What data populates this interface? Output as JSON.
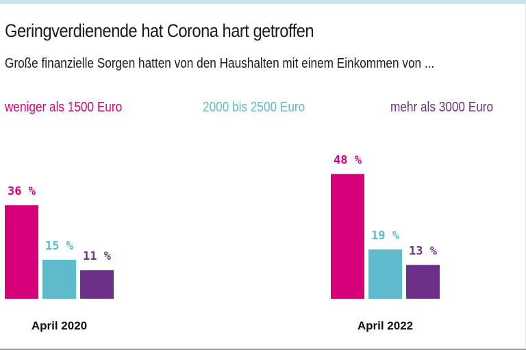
{
  "header": {
    "title": "Geringverdienende hat Corona hart getroffen",
    "subtitle": "Große finanzielle Sorgen hatten von den Haushalten mit einem Einkommen von ..."
  },
  "legend": [
    {
      "label": "weniger als 1500 Euro",
      "color": "#d6007a"
    },
    {
      "label": "2000 bis 2500 Euro",
      "color": "#5fbacb"
    },
    {
      "label": "mehr als 3000 Euro",
      "color": "#6c3089"
    }
  ],
  "chart_data": {
    "type": "bar",
    "title": "Geringverdienende hat Corona hart getroffen",
    "subtitle": "Große finanzielle Sorgen hatten von den Haushalten mit einem Einkommen von ...",
    "xlabel": "",
    "ylabel": "",
    "categories": [
      "April 2020",
      "April 2022"
    ],
    "series": [
      {
        "name": "weniger als 1500 Euro",
        "color": "#d6007a",
        "values": [
          36,
          48
        ]
      },
      {
        "name": "2000 bis 2500 Euro",
        "color": "#5fbacb",
        "values": [
          15,
          19
        ]
      },
      {
        "name": "mehr als 3000 Euro",
        "color": "#6c3089",
        "values": [
          11,
          13
        ]
      }
    ],
    "unit": "%",
    "value_label_suffix": " %",
    "ylim": [
      0,
      48
    ],
    "grid": false,
    "legend_position": "top"
  }
}
